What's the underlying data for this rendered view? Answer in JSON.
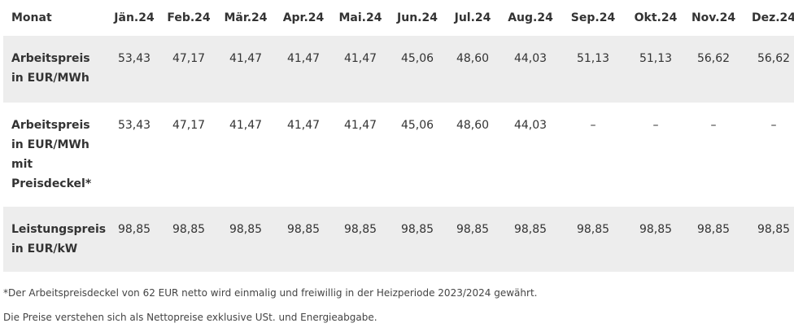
{
  "table": {
    "header_label": "Monat",
    "months": [
      "Jän.24",
      "Feb.24",
      "Mär.24",
      "Apr.24",
      "Mai.24",
      "Jun.24",
      "Jul.24",
      "Aug.24",
      "Sep.24",
      "Okt.24",
      "Nov.24",
      "Dez.24"
    ],
    "rows": [
      {
        "label_lines": [
          "Arbeitspreis",
          "in EUR/MWh"
        ],
        "values": [
          "53,43",
          "47,17",
          "41,47",
          "41,47",
          "41,47",
          "45,06",
          "48,60",
          "44,03",
          "51,13",
          "51,13",
          "56,62",
          "56,62"
        ]
      },
      {
        "label_lines": [
          "Arbeitspreis",
          "in EUR/MWh",
          "mit",
          "Preisdeckel*"
        ],
        "values": [
          "53,43",
          "47,17",
          "41,47",
          "41,47",
          "41,47",
          "45,06",
          "48,60",
          "44,03",
          "–",
          "–",
          "–",
          "–"
        ]
      },
      {
        "label_lines": [
          "Leistungspreis",
          "in EUR/kW"
        ],
        "values": [
          "98,85",
          "98,85",
          "98,85",
          "98,85",
          "98,85",
          "98,85",
          "98,85",
          "98,85",
          "98,85",
          "98,85",
          "98,85",
          "98,85"
        ]
      }
    ]
  },
  "notes": {
    "footnote": "*Der Arbeitspreisdeckel von 62 EUR netto wird einmalig und freiwillig in der Heizperiode 2023/2024 gewährt.",
    "disclaimer": "Die Preise verstehen sich als Nettopreise exklusive USt. und Energieabgabe."
  }
}
